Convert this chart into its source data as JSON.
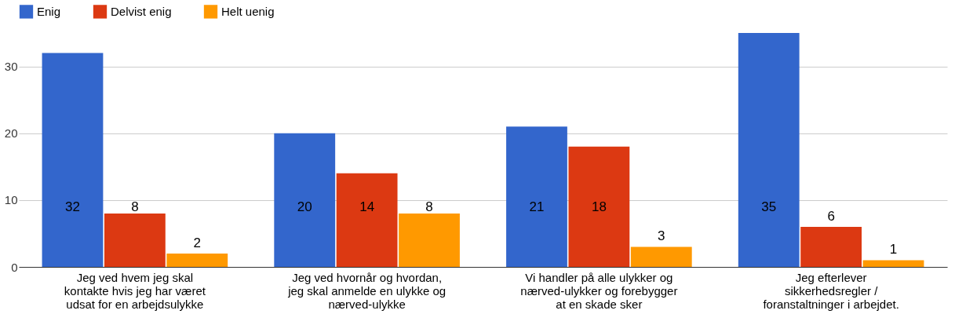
{
  "chart_data": {
    "type": "bar",
    "categories": [
      "Jeg ved hvem jeg skal kontakte hvis jeg har været udsat for en arbejdsulykke",
      "Jeg ved hvornår og hvordan, jeg skal anmelde en ulykke og nærved-ulykke",
      "Vi handler på alle ulykker og nærved-ulykker og forebygger at en skade sker",
      "Jeg efterlever sikkerhedsregler / foranstaltninger i arbejdet."
    ],
    "series": [
      {
        "name": "Enig",
        "color": "#3366cc",
        "values": [
          32,
          20,
          21,
          35
        ]
      },
      {
        "name": "Delvist enig",
        "color": "#dc3912",
        "values": [
          8,
          14,
          18,
          6
        ]
      },
      {
        "name": "Helt uenig",
        "color": "#ff9900",
        "values": [
          2,
          8,
          3,
          1
        ]
      }
    ],
    "ylim": [
      0,
      35
    ],
    "yticks": [
      0,
      10,
      20,
      30
    ],
    "grid": "y",
    "legend": "top left",
    "data_labels": true
  }
}
